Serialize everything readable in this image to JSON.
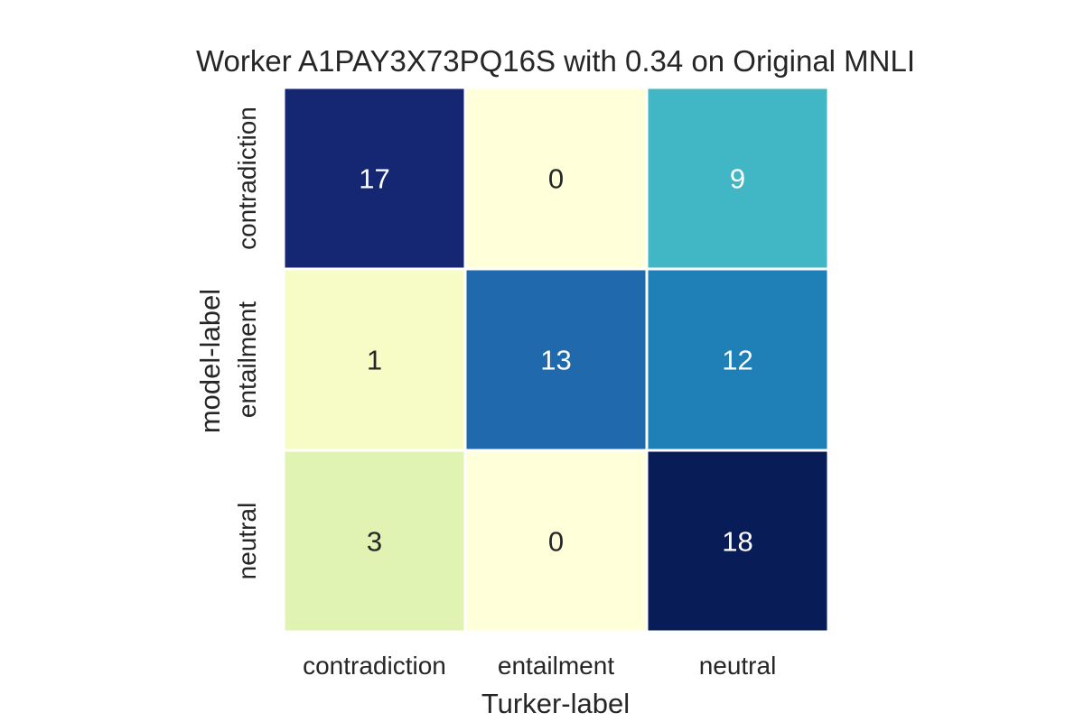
{
  "chart_data": {
    "type": "heatmap",
    "title": "Worker A1PAY3X73PQ16S with 0.34 on Original MNLI",
    "xlabel": "Turker-label",
    "ylabel": "model-label",
    "x_categories": [
      "contradiction",
      "entailment",
      "neutral"
    ],
    "y_categories": [
      "contradiction",
      "entailment",
      "neutral"
    ],
    "values": [
      [
        17,
        0,
        9
      ],
      [
        1,
        13,
        12
      ],
      [
        3,
        0,
        18
      ]
    ],
    "colormap": "YlGnBu",
    "vmin": 0,
    "vmax": 18,
    "colorbar": false
  }
}
